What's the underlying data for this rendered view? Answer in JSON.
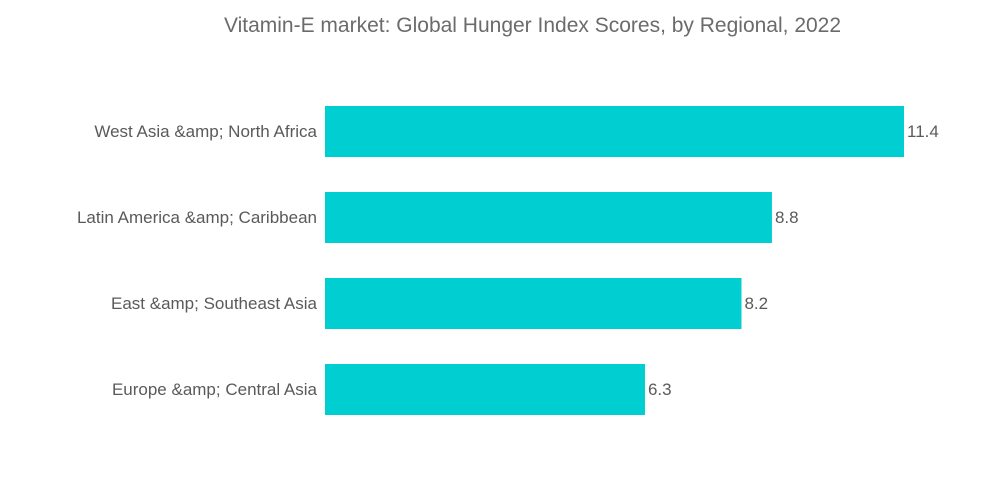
{
  "chart_data": {
    "type": "bar",
    "orientation": "horizontal",
    "title": "Vitamin-E market: Global Hunger Index Scores, by Regional, 2022",
    "categories": [
      "West Asia &amp; North Africa",
      "Latin America &amp; Caribbean",
      "East &amp; Southeast Asia",
      "Europe &amp; Central Asia"
    ],
    "values": [
      11.4,
      8.8,
      8.2,
      6.3
    ],
    "value_labels": [
      "11.4",
      "8.8",
      "8.2",
      "6.3"
    ],
    "xlim": [
      0,
      11.4
    ],
    "grid": false,
    "legend": "none",
    "colors": {
      "bar": "#00CED1",
      "text": "#5a5a5a"
    }
  }
}
